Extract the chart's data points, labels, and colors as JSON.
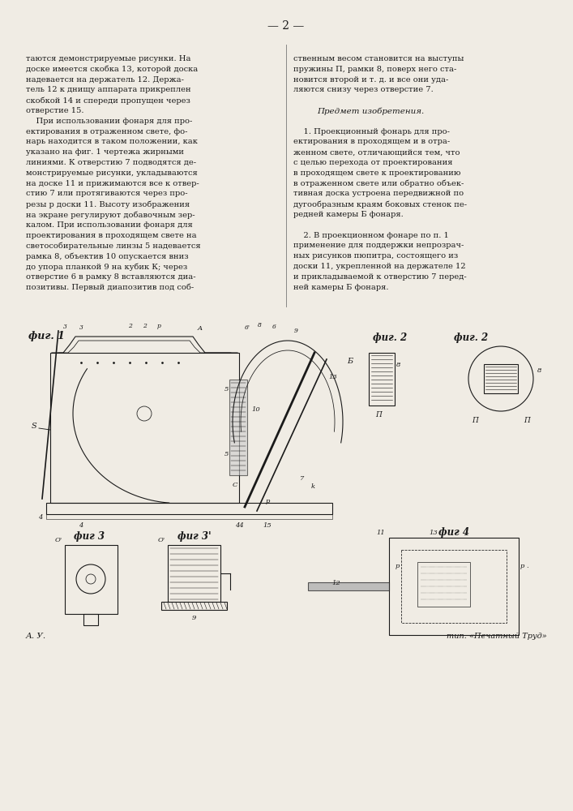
{
  "page_number": "2",
  "bg_color": "#f0ece4",
  "text_color": "#1a1a1a",
  "col1_lines": [
    "таются демонстрируемые рисунки. На",
    "доске имеется скобка 13, которой доска",
    "надевается на держатель 12. Держа-",
    "тель 12 к днищу аппарата прикреплен",
    "скобкой 14 и спереди пропущен через",
    "отверстие 15.",
    "    При использовании фонаря для про-",
    "ектирования в отраженном свете, фо-",
    "нарь находится в таком положении, как",
    "указано на фиг. 1 чертежа жирными",
    "линиями. К отверстию 7 подводятся де-",
    "монстрируемые рисунки, укладываются",
    "на доске 11 и прижимаются все к отвер-",
    "стию 7 или протягиваются через про-",
    "резы р доски 11. Высоту изображения",
    "на экране регулируют добавочным зер-",
    "калом. При использовании фонаря для",
    "проектирования в проходящем свете на",
    "светособирательные линзы 5 надевается",
    "рамка 8, объектив 10 опускается вниз",
    "до упора планкой 9 на кубик К; через",
    "отверстие 6 в рамку 8 вставляются диа-",
    "позитивы. Первый диапозитив под соб-"
  ],
  "col2_lines": [
    "ственным весом становится на выступы",
    "пружины П, рамки 8, поверх него ста-",
    "новится второй и т. д. и все они уда-",
    "ляются снизу через отверстие 7.",
    "",
    "Предмет изобретения.",
    "",
    "    1. Проекционный фонарь для про-",
    "ектирования в проходящем и в отра-",
    "женном свете, отличающийся тем, что",
    "с целью перехода от проектирования",
    "в проходящем свете к проектированию",
    "в отраженном свете или обратно объек-",
    "тивная доска устроена передвижной по",
    "дугообразным краям боковых стенок пе-",
    "редней камеры Б фонаря.",
    "",
    "    2. В проекционном фонаре по п. 1",
    "применение для поддержки непрозрач-",
    "ных рисунков пюпитра, состоящего из",
    "доски 11, укрепленной на держателе 12",
    "и прикладываемой к отверстию 7 перед-",
    "ней камеры Б фонаря."
  ],
  "footer_left": "А. У.",
  "footer_right": "тип. «Печатный Труд»"
}
